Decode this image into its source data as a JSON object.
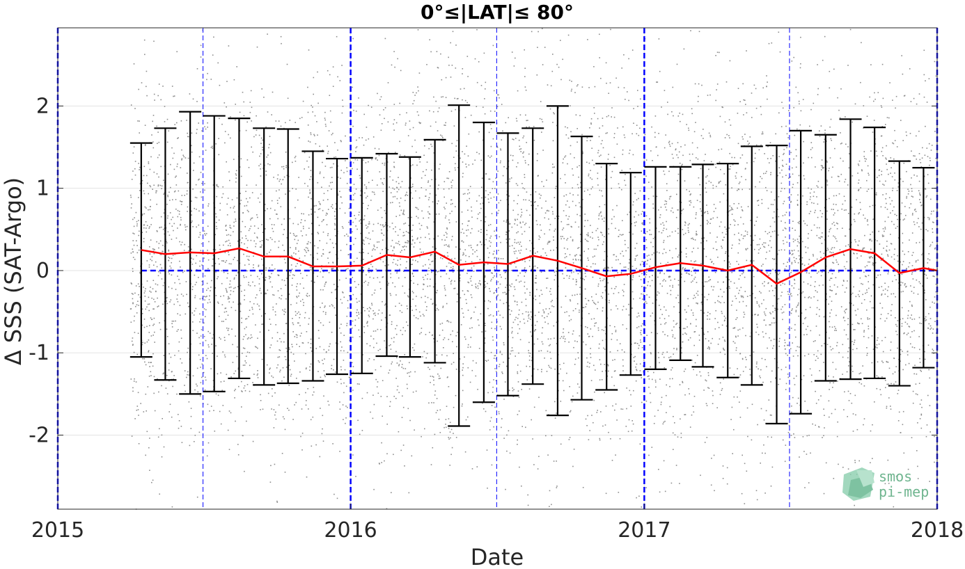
{
  "chart_data": {
    "type": "scatter",
    "title": "0°≤|LAT|≤ 80°",
    "xlabel": "Date",
    "ylabel": "Δ SSS (SAT-Argo)",
    "xlim": [
      "2015-01-01",
      "2018-01-01"
    ],
    "ylim": [
      -2.9,
      2.95
    ],
    "x_ticks": [
      {
        "date": "2015-01-01",
        "label": "2015"
      },
      {
        "date": "2016-01-01",
        "label": "2016"
      },
      {
        "date": "2017-01-01",
        "label": "2017"
      },
      {
        "date": "2018-01-01",
        "label": "2018"
      }
    ],
    "y_ticks": [
      {
        "value": -2,
        "label": "-2"
      },
      {
        "value": -1,
        "label": "-1"
      },
      {
        "value": 0,
        "label": "0"
      },
      {
        "value": 1,
        "label": "1"
      },
      {
        "value": 2,
        "label": "2"
      }
    ],
    "grid": true,
    "scatter": {
      "description": "individual SAT-Argo differences",
      "date_start": "2015-04-01",
      "date_end": "2018-01-01",
      "color": "#8c8c8c"
    },
    "series": [
      {
        "kind": "monthly-mean-with-error-bars",
        "color": "#ff0000",
        "points": [
          {
            "date": "2015-04-15",
            "mean": 0.25,
            "low": -1.05,
            "high": 1.55
          },
          {
            "date": "2015-05-15",
            "mean": 0.2,
            "low": -1.33,
            "high": 1.73
          },
          {
            "date": "2015-06-15",
            "mean": 0.22,
            "low": -1.5,
            "high": 1.93
          },
          {
            "date": "2015-07-15",
            "mean": 0.21,
            "low": -1.47,
            "high": 1.88
          },
          {
            "date": "2015-08-15",
            "mean": 0.27,
            "low": -1.31,
            "high": 1.85
          },
          {
            "date": "2015-09-15",
            "mean": 0.17,
            "low": -1.39,
            "high": 1.73
          },
          {
            "date": "2015-10-15",
            "mean": 0.17,
            "low": -1.37,
            "high": 1.72
          },
          {
            "date": "2015-11-15",
            "mean": 0.05,
            "low": -1.34,
            "high": 1.45
          },
          {
            "date": "2015-12-15",
            "mean": 0.05,
            "low": -1.26,
            "high": 1.36
          },
          {
            "date": "2016-01-15",
            "mean": 0.06,
            "low": -1.25,
            "high": 1.37
          },
          {
            "date": "2016-02-15",
            "mean": 0.19,
            "low": -1.04,
            "high": 1.42
          },
          {
            "date": "2016-03-15",
            "mean": 0.16,
            "low": -1.05,
            "high": 1.38
          },
          {
            "date": "2016-04-15",
            "mean": 0.23,
            "low": -1.12,
            "high": 1.59
          },
          {
            "date": "2016-05-15",
            "mean": 0.07,
            "low": -1.89,
            "high": 2.01
          },
          {
            "date": "2016-06-15",
            "mean": 0.1,
            "low": -1.6,
            "high": 1.8
          },
          {
            "date": "2016-07-15",
            "mean": 0.08,
            "low": -1.52,
            "high": 1.67
          },
          {
            "date": "2016-08-15",
            "mean": 0.18,
            "low": -1.38,
            "high": 1.73
          },
          {
            "date": "2016-09-15",
            "mean": 0.12,
            "low": -1.76,
            "high": 2.0
          },
          {
            "date": "2016-10-15",
            "mean": 0.03,
            "low": -1.57,
            "high": 1.63
          },
          {
            "date": "2016-11-15",
            "mean": -0.07,
            "low": -1.45,
            "high": 1.3
          },
          {
            "date": "2016-12-15",
            "mean": -0.04,
            "low": -1.27,
            "high": 1.19
          },
          {
            "date": "2017-01-15",
            "mean": 0.04,
            "low": -1.2,
            "high": 1.26
          },
          {
            "date": "2017-02-15",
            "mean": 0.09,
            "low": -1.09,
            "high": 1.26
          },
          {
            "date": "2017-03-15",
            "mean": 0.06,
            "low": -1.17,
            "high": 1.29
          },
          {
            "date": "2017-04-15",
            "mean": 0.0,
            "low": -1.3,
            "high": 1.3
          },
          {
            "date": "2017-05-15",
            "mean": 0.07,
            "low": -1.39,
            "high": 1.51
          },
          {
            "date": "2017-06-15",
            "mean": -0.16,
            "low": -1.86,
            "high": 1.52
          },
          {
            "date": "2017-07-15",
            "mean": -0.02,
            "low": -1.74,
            "high": 1.7
          },
          {
            "date": "2017-08-15",
            "mean": 0.16,
            "low": -1.34,
            "high": 1.65
          },
          {
            "date": "2017-09-15",
            "mean": 0.26,
            "low": -1.32,
            "high": 1.84
          },
          {
            "date": "2017-10-15",
            "mean": 0.21,
            "low": -1.31,
            "high": 1.74
          },
          {
            "date": "2017-11-15",
            "mean": -0.03,
            "low": -1.4,
            "high": 1.33
          },
          {
            "date": "2017-12-15",
            "mean": 0.03,
            "low": -1.18,
            "high": 1.25
          }
        ]
      }
    ],
    "reference_lines": {
      "zero_line": {
        "value": 0,
        "color": "#0000ff",
        "style": "dashed"
      },
      "year_lines": {
        "dates": [
          "2015-01-01",
          "2016-01-01",
          "2017-01-01",
          "2018-01-01"
        ],
        "color": "#0000ff",
        "style": "dashed",
        "weight": "thick"
      },
      "midyear_lines": {
        "dates": [
          "2015-07-01",
          "2016-07-01",
          "2017-07-01"
        ],
        "color": "#0000ff",
        "style": "dashed",
        "weight": "thin"
      }
    }
  },
  "logo": {
    "line1": "smos",
    "line2": "pi-mep"
  }
}
